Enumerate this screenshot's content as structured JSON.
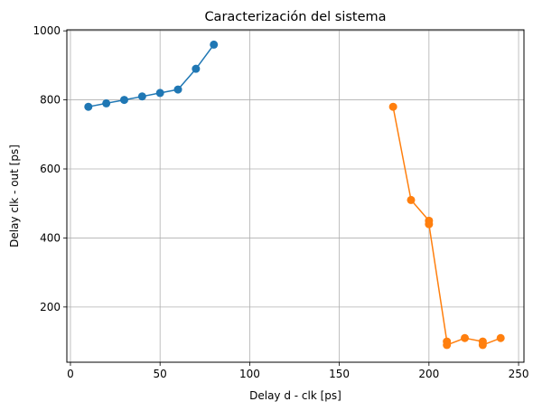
{
  "chart_data": {
    "type": "line",
    "title": "Caracterización del sistema",
    "xlabel": "Delay d - clk [ps]",
    "ylabel": "Delay clk - out [ps]",
    "xlim": [
      -2,
      253
    ],
    "ylim": [
      40,
      1003
    ],
    "xticks": [
      0,
      50,
      100,
      150,
      200,
      250
    ],
    "yticks": [
      200,
      400,
      600,
      800,
      1000
    ],
    "grid": true,
    "markers": true,
    "series": [
      {
        "color": "#1f77b4",
        "x": [
          10,
          20,
          30,
          40,
          50,
          60,
          70,
          80
        ],
        "y": [
          780,
          790,
          800,
          810,
          820,
          830,
          890,
          960
        ]
      },
      {
        "color": "#ff7f0e",
        "x": [
          180,
          190,
          200,
          200,
          210,
          210,
          220,
          230,
          230,
          240
        ],
        "y": [
          780,
          510,
          450,
          440,
          100,
          90,
          110,
          100,
          90,
          110
        ]
      }
    ]
  }
}
